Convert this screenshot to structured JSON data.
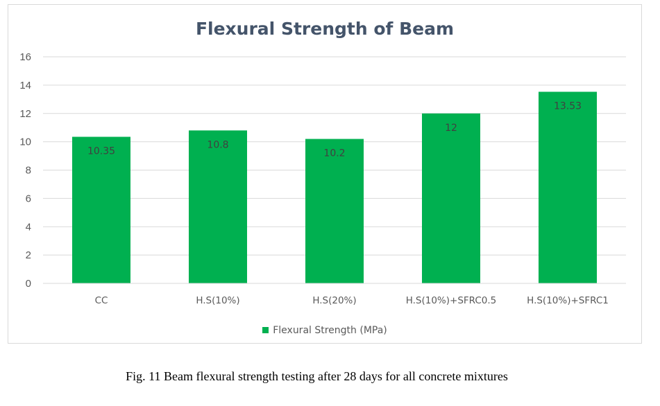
{
  "chart_data": {
    "type": "bar",
    "title": "Flexural Strength of Beam",
    "categories": [
      "CC",
      "H.S(10%)",
      "H.S(20%)",
      "H.S(10%)+SFRC0.5",
      "H.S(10%)+SFRC1"
    ],
    "series": [
      {
        "name": "Flexural Strength (MPa)",
        "values": [
          10.35,
          10.8,
          10.2,
          12,
          13.53
        ],
        "data_labels": [
          "10.35",
          "10.8",
          "10.2",
          "12",
          "13.53"
        ]
      }
    ],
    "y_ticks": [
      "0",
      "2",
      "4",
      "6",
      "8",
      "10",
      "12",
      "14",
      "16"
    ],
    "ylim": [
      0,
      16
    ],
    "xlabel": "",
    "ylabel": "",
    "grid": true,
    "legend_position": "bottom",
    "colors": {
      "bar": "#00b050",
      "grid": "#d9d9d9",
      "title": "#44546a"
    }
  },
  "caption": "Fig. 11 Beam flexural strength testing after 28 days for all concrete mixtures"
}
